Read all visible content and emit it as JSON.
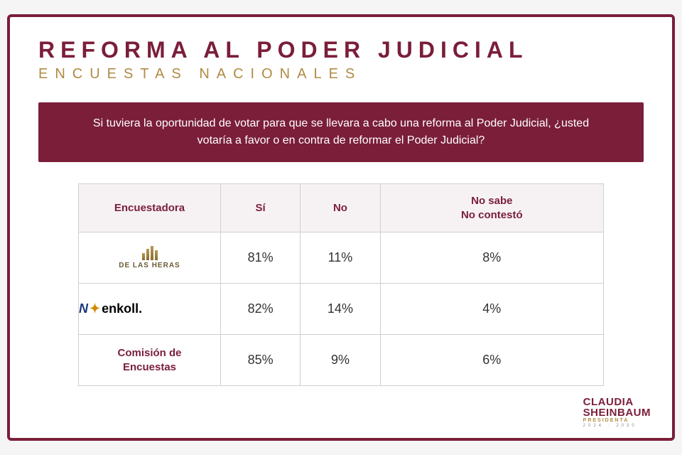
{
  "colors": {
    "brand": "#7a1e3a",
    "gold": "#b08a44",
    "header_bg": "#f6f2f4",
    "border": "#cfcfcf",
    "text": "#333333",
    "page_bg": "#ffffff"
  },
  "title": "REFORMA AL PODER JUDICIAL",
  "subtitle": "ENCUESTAS NACIONALES",
  "question": "Si tuviera la oportunidad de votar para que se llevara a cabo una reforma al Poder Judicial, ¿usted votaría a favor o en contra de reformar el Poder Judicial?",
  "table": {
    "columns": [
      "Encuestadora",
      "Sí",
      "No",
      "No sabe\nNo contestó"
    ],
    "rows": [
      {
        "pollster": "DE LAS HERAS",
        "pollster_style": "heras",
        "si": "81%",
        "no": "11%",
        "nsnc": "8%"
      },
      {
        "pollster": "enkoll.",
        "pollster_style": "enkoll",
        "si": "82%",
        "no": "14%",
        "nsnc": "4%"
      },
      {
        "pollster": "Comisión de\nEncuestas",
        "pollster_style": "comision",
        "si": "85%",
        "no": "9%",
        "nsnc": "6%"
      }
    ]
  },
  "footer": {
    "line1": "CLAUDIA",
    "line2": "SHEINBAUM",
    "line3": "PRESIDENTA",
    "line4": "2024 · 2030"
  }
}
